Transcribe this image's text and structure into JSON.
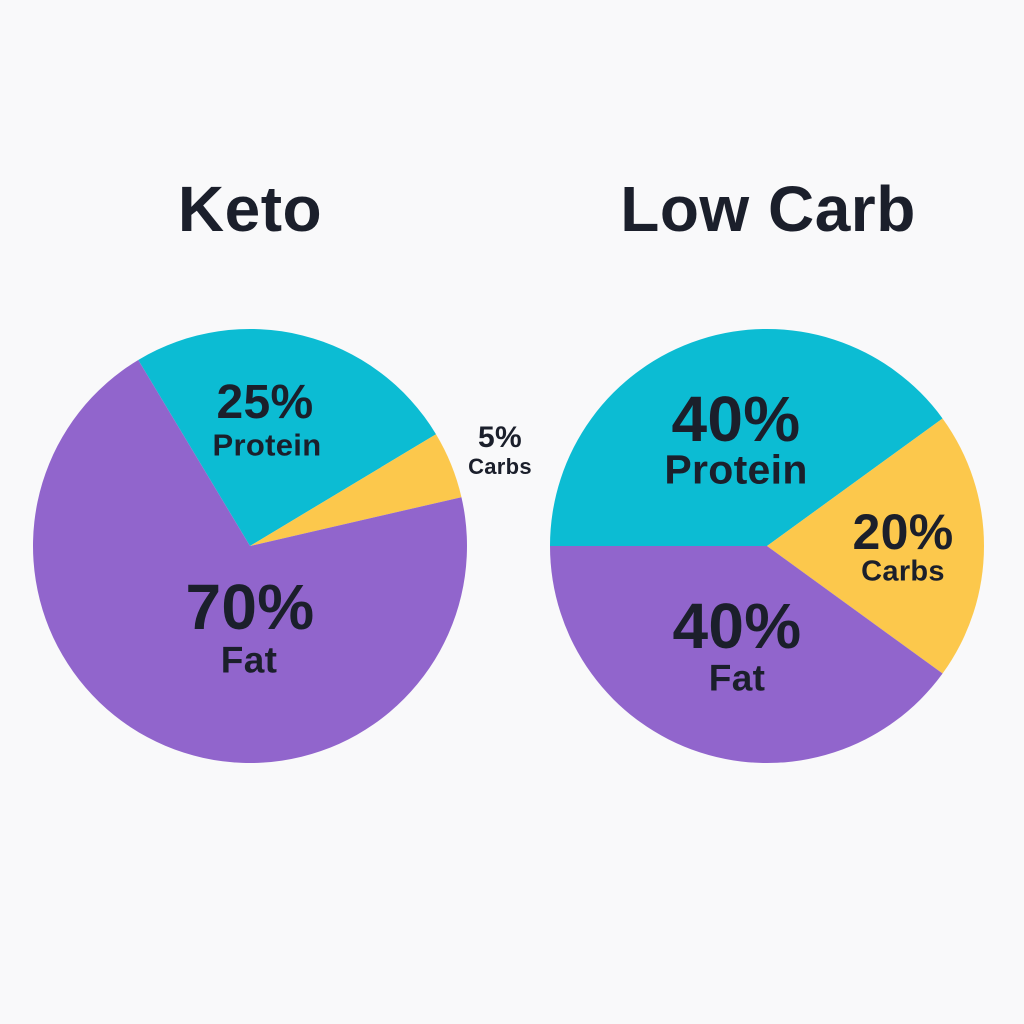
{
  "page": {
    "background_color": "#F9F9FA",
    "text_color": "#1B1F2B"
  },
  "colors": {
    "protein": "#0CBCD3",
    "carbs": "#FCC84C",
    "fat": "#9165CC"
  },
  "chart_data": [
    {
      "type": "pie",
      "title": "Keto",
      "start_angle_deg": -31,
      "direction": "clockwise",
      "slices": [
        {
          "label": "Protein",
          "value": 25,
          "display": "25%",
          "color": "#0CBCD3",
          "label_placement": "inside"
        },
        {
          "label": "Carbs",
          "value": 5,
          "display": "5%",
          "color": "#FCC84C",
          "label_placement": "outside-right"
        },
        {
          "label": "Fat",
          "value": 70,
          "display": "70%",
          "color": "#9165CC",
          "label_placement": "inside"
        }
      ]
    },
    {
      "type": "pie",
      "title": "Low Carb",
      "start_angle_deg": -90,
      "direction": "clockwise",
      "slices": [
        {
          "label": "Protein",
          "value": 40,
          "display": "40%",
          "color": "#0CBCD3",
          "label_placement": "inside"
        },
        {
          "label": "Carbs",
          "value": 20,
          "display": "20%",
          "color": "#FCC84C",
          "label_placement": "inside"
        },
        {
          "label": "Fat",
          "value": 40,
          "display": "40%",
          "color": "#9165CC",
          "label_placement": "inside"
        }
      ]
    }
  ]
}
